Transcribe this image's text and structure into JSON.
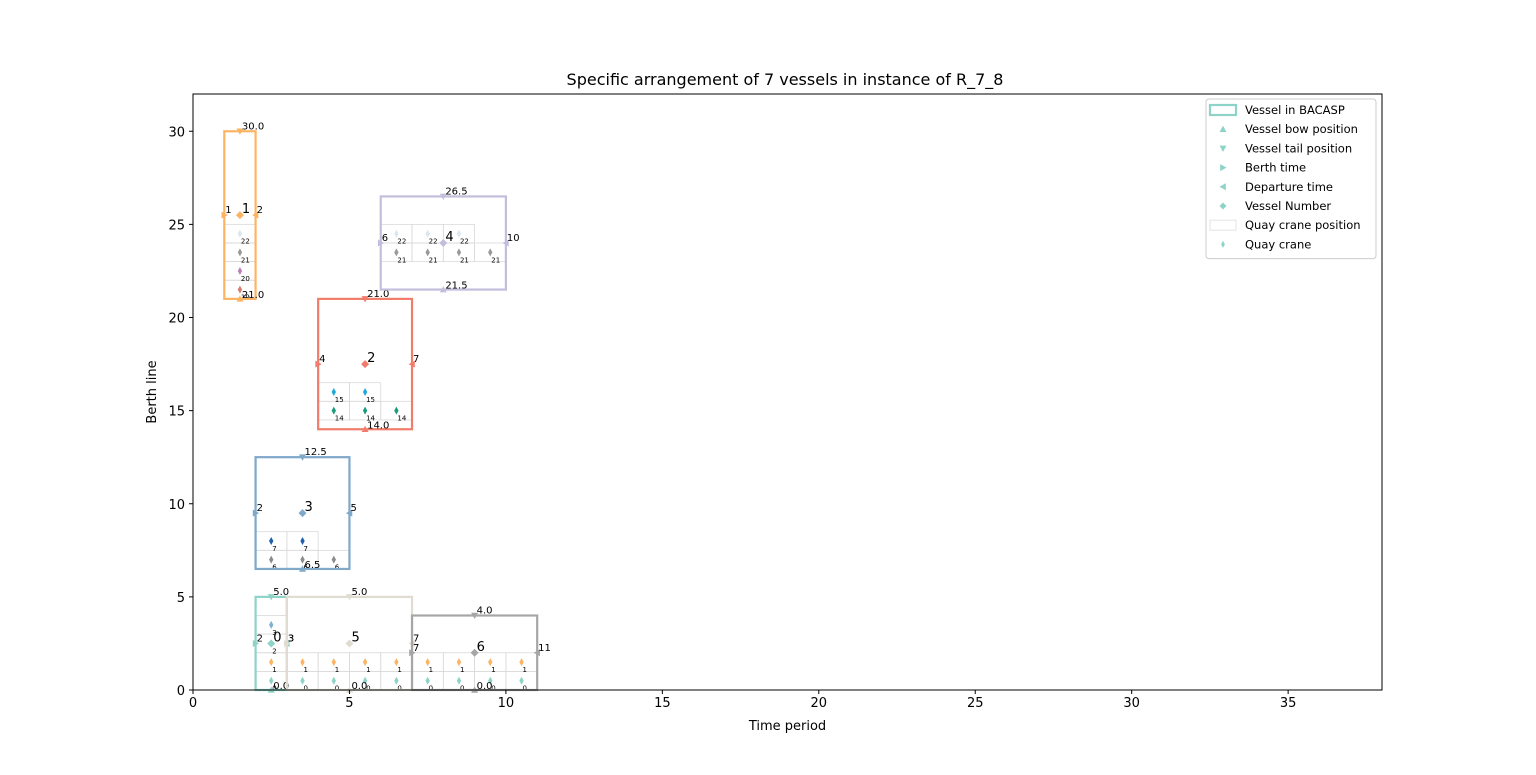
{
  "chart_data": {
    "type": "gantt-rectangles",
    "title": "Specific arrangement of 7 vessels in instance of R_7_8",
    "xlabel": "Time period",
    "ylabel": "Berth line",
    "xlim": [
      0,
      38
    ],
    "ylim": [
      0,
      32
    ],
    "xticks": [
      0,
      5,
      10,
      15,
      20,
      25,
      30,
      35
    ],
    "yticks": [
      0,
      5,
      10,
      15,
      20,
      25,
      30
    ],
    "grid": false,
    "legend_position": "upper right",
    "legend": [
      {
        "label": "Vessel in BACASP",
        "marker": "rect"
      },
      {
        "label": "Vessel bow position",
        "marker": "triangle-up"
      },
      {
        "label": "Vessel tail position",
        "marker": "triangle-down"
      },
      {
        "label": "Berth time",
        "marker": "triangle-right"
      },
      {
        "label": "Departure time",
        "marker": "triangle-left"
      },
      {
        "label": "Vessel Number",
        "marker": "diamond"
      },
      {
        "label": "Quay crane position",
        "marker": "light-rect"
      },
      {
        "label": "Quay crane",
        "marker": "thin-diamond"
      }
    ],
    "vessels": [
      {
        "id": "0",
        "color": "#8dd3c7",
        "start": 2,
        "end": 3,
        "bottom": 0,
        "top": 5,
        "labels": {
          "start": "2",
          "end": "3",
          "bottom": "0.0",
          "top": "5.0"
        },
        "crane_rows": [
          {
            "berth": 0.5,
            "crane": "0",
            "color": "#8dd3c7",
            "times": [
              2
            ]
          },
          {
            "berth": 1.5,
            "crane": "1",
            "color": "#fdb462",
            "times": [
              2
            ]
          },
          {
            "berth": 2.5,
            "crane": "2",
            "color": "#fb8072",
            "times": [
              2
            ]
          },
          {
            "berth": 3.5,
            "crane": "3",
            "color": "#80b1d3",
            "times": [
              2
            ]
          }
        ]
      },
      {
        "id": "1",
        "color": "#fdb462",
        "start": 1,
        "end": 2,
        "bottom": 21,
        "top": 30,
        "labels": {
          "start": "1",
          "end": "2",
          "bottom": "21.0",
          "top": "30.0"
        },
        "crane_rows": [
          {
            "berth": 21.5,
            "crane": "19",
            "color": "#d97b6e",
            "times": [
              1
            ]
          },
          {
            "berth": 22.5,
            "crane": "20",
            "color": "#bc80bd",
            "times": [
              1
            ]
          },
          {
            "berth": 23.5,
            "crane": "21",
            "color": "#999999",
            "times": [
              1
            ]
          },
          {
            "berth": 24.5,
            "crane": "22",
            "color": "#d9e8ee",
            "times": [
              1
            ]
          }
        ]
      },
      {
        "id": "2",
        "color": "#f27c6b",
        "start": 4,
        "end": 7,
        "bottom": 14,
        "top": 21,
        "labels": {
          "start": "4",
          "end": "7",
          "bottom": "14.0",
          "top": "21.0"
        },
        "crane_rows": [
          {
            "berth": 15,
            "crane": "14",
            "color": "#1a9c7a",
            "times": [
              4,
              5,
              6
            ]
          },
          {
            "berth": 16,
            "crane": "15",
            "color": "#1fa9d9",
            "times": [
              4,
              5
            ]
          }
        ]
      },
      {
        "id": "3",
        "color": "#7fa8c9",
        "start": 2,
        "end": 5,
        "bottom": 6.5,
        "top": 12.5,
        "labels": {
          "start": "2",
          "end": "5",
          "bottom": "6.5",
          "top": "12.5"
        },
        "crane_rows": [
          {
            "berth": 7,
            "crane": "6",
            "color": "#8c8c8c",
            "times": [
              2,
              3,
              4
            ]
          },
          {
            "berth": 8,
            "crane": "7",
            "color": "#1f5fae",
            "times": [
              2,
              3
            ]
          }
        ]
      },
      {
        "id": "4",
        "color": "#c2bfdc",
        "start": 6,
        "end": 10,
        "bottom": 21.5,
        "top": 26.5,
        "labels": {
          "start": "6",
          "end": "10",
          "bottom": "21.5",
          "top": "26.5"
        },
        "crane_rows": [
          {
            "berth": 23.5,
            "crane": "21",
            "color": "#999999",
            "times": [
              6,
              7,
              8,
              9
            ]
          },
          {
            "berth": 24.5,
            "crane": "22",
            "color": "#d9e8ee",
            "times": [
              6,
              7,
              8
            ]
          }
        ]
      },
      {
        "id": "5",
        "color": "#e0dcd2",
        "start": 3,
        "end": 7,
        "bottom": 0,
        "top": 5,
        "labels": {
          "start": "3",
          "end": "7",
          "bottom": "0.0",
          "top": "5.0"
        },
        "crane_rows": [
          {
            "berth": 0.5,
            "crane": "0",
            "color": "#8dd3c7",
            "times": [
              3,
              4,
              5,
              6
            ]
          },
          {
            "berth": 1.5,
            "crane": "1",
            "color": "#fdb462",
            "times": [
              3,
              4,
              5,
              6
            ]
          }
        ]
      },
      {
        "id": "6",
        "color": "#a6a6a6",
        "start": 7,
        "end": 11,
        "bottom": 0,
        "top": 4,
        "labels": {
          "start": "7",
          "end": "11",
          "bottom": "0.0",
          "top": "4.0"
        },
        "crane_rows": [
          {
            "berth": 0.5,
            "crane": "0",
            "color": "#8dd3c7",
            "times": [
              7,
              8,
              9,
              10
            ]
          },
          {
            "berth": 1.5,
            "crane": "1",
            "color": "#fdb462",
            "times": [
              7,
              8,
              9,
              10
            ]
          }
        ]
      }
    ]
  }
}
